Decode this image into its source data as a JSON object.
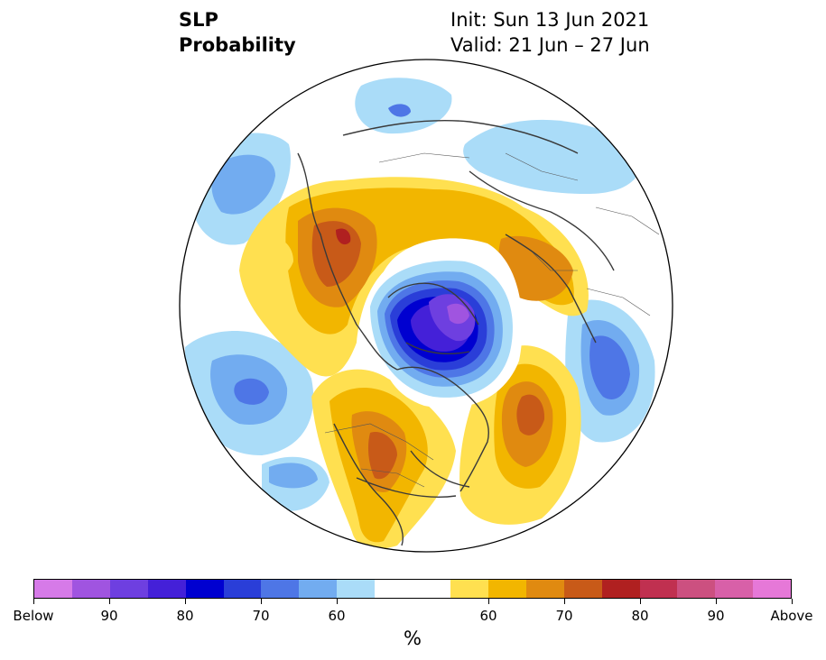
{
  "title": {
    "left_line1": "SLP",
    "left_line2": "Probability",
    "right_line1": "Init: Sun 13 Jun 2021",
    "right_line2": "Valid: 21 Jun – 27 Jun"
  },
  "colorbar": {
    "colors": [
      "#d67ae8",
      "#a054e0",
      "#6e3fe0",
      "#4420d8",
      "#0000d0",
      "#2a3ed8",
      "#4e76e6",
      "#72acf0",
      "#aadcf8",
      "#ffffff",
      "#ffffff",
      "#ffe050",
      "#f2b600",
      "#e08a10",
      "#c85a18",
      "#b02020",
      "#c03050",
      "#cc5080",
      "#d860a8",
      "#e678d8"
    ],
    "labels": [
      "Below",
      "90",
      "80",
      "70",
      "60",
      "60",
      "70",
      "80",
      "90",
      "Above"
    ],
    "unit": "%"
  },
  "map": {
    "projection": "north polar stereographic",
    "field": "sea level pressure probability"
  }
}
